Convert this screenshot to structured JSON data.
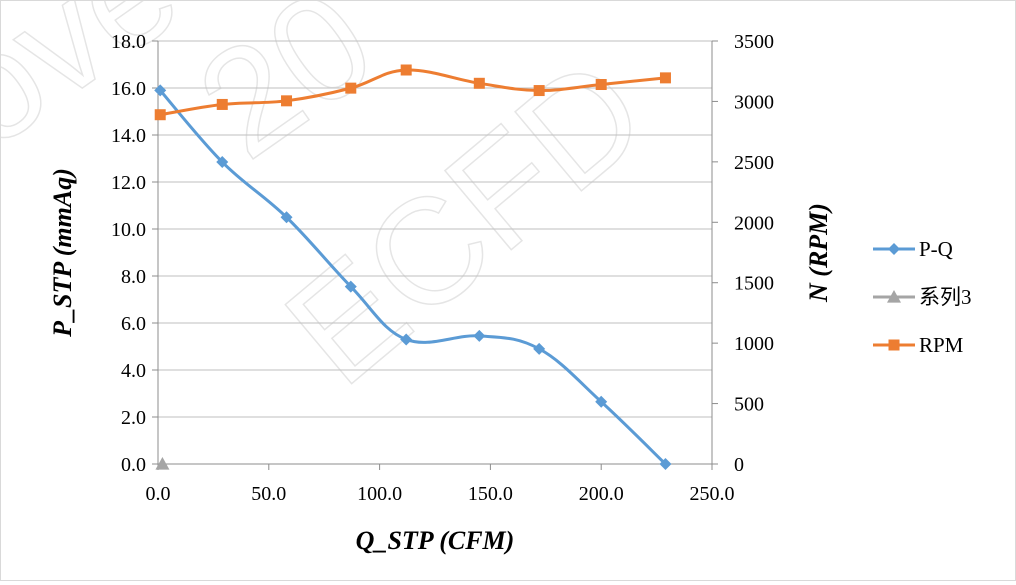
{
  "chart_data": {
    "type": "line",
    "title": "",
    "xlabel": "Q_STP (CFM)",
    "ylabel_left": "P_STP (mmAq)",
    "ylabel_right": "N (RPM)",
    "xlim": [
      0,
      250
    ],
    "ylim_left": [
      0,
      18
    ],
    "ylim_right": [
      0,
      3500
    ],
    "x_ticks": [
      "0.0",
      "50.0",
      "100.0",
      "150.0",
      "200.0",
      "250.0"
    ],
    "y_left_ticks": [
      "0.0",
      "2.0",
      "4.0",
      "6.0",
      "8.0",
      "10.0",
      "12.0",
      "14.0",
      "16.0",
      "18.0"
    ],
    "y_right_ticks": [
      "0",
      "500",
      "1000",
      "1500",
      "2000",
      "2500",
      "3000",
      "3500"
    ],
    "grid": "horizontal",
    "legend_position": "right",
    "series": [
      {
        "name": "P-Q",
        "axis": "left",
        "marker": "diamond",
        "color": "#5B9BD5",
        "x": [
          1.0,
          29.0,
          58.0,
          87.0,
          112.0,
          145.0,
          172.0,
          200.0,
          229.0
        ],
        "y": [
          15.9,
          12.85,
          10.5,
          7.55,
          5.3,
          5.45,
          4.9,
          2.65,
          0.0
        ]
      },
      {
        "name": "系列3",
        "axis": "left",
        "marker": "triangle",
        "color": "#A5A5A5",
        "x": [
          2.0
        ],
        "y": [
          0.0
        ]
      },
      {
        "name": "RPM",
        "axis": "right",
        "marker": "square",
        "color": "#ED7D31",
        "x": [
          1.0,
          29.0,
          58.0,
          87.0,
          112.0,
          145.0,
          172.0,
          200.0,
          229.0
        ],
        "y": [
          2890,
          2975,
          3005,
          3110,
          3260,
          3150,
          3090,
          3140,
          3195
        ]
      }
    ]
  }
}
